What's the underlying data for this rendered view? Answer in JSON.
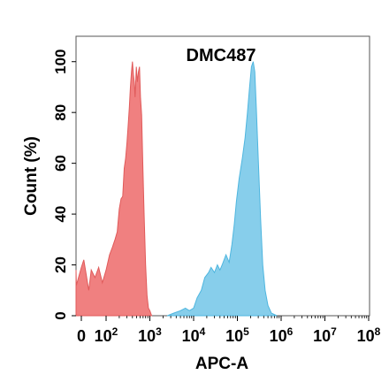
{
  "chart_data": {
    "type": "area",
    "title": "DMC487",
    "xlabel": "APC-A",
    "ylabel": "Count (%)",
    "xscale": "biexponential",
    "xlim": [
      -50,
      100000000
    ],
    "ylim": [
      0,
      110
    ],
    "x_ticks": [
      {
        "value": 0,
        "label": "0",
        "sup": ""
      },
      {
        "value": 100,
        "label": "10",
        "sup": "2"
      },
      {
        "value": 1000,
        "label": "10",
        "sup": "3"
      },
      {
        "value": 10000,
        "label": "10",
        "sup": "4"
      },
      {
        "value": 100000,
        "label": "10",
        "sup": "5"
      },
      {
        "value": 1000000,
        "label": "10",
        "sup": "6"
      },
      {
        "value": 10000000,
        "label": "10",
        "sup": "7"
      },
      {
        "value": 100000000,
        "label": "10",
        "sup": "8"
      }
    ],
    "y_ticks": [
      0,
      20,
      40,
      60,
      80,
      100
    ],
    "grid": false,
    "series": [
      {
        "color": "#f08080",
        "edge_color": "#e05a5a",
        "points": [
          [
            -50,
            18
          ],
          [
            -20,
            12
          ],
          [
            0,
            19
          ],
          [
            10,
            22
          ],
          [
            20,
            16
          ],
          [
            30,
            10
          ],
          [
            40,
            18
          ],
          [
            55,
            15
          ],
          [
            70,
            19
          ],
          [
            85,
            13
          ],
          [
            100,
            18
          ],
          [
            120,
            24
          ],
          [
            140,
            27
          ],
          [
            160,
            30
          ],
          [
            180,
            33
          ],
          [
            200,
            42
          ],
          [
            220,
            46
          ],
          [
            240,
            47
          ],
          [
            260,
            58
          ],
          [
            280,
            62
          ],
          [
            300,
            68
          ],
          [
            320,
            75
          ],
          [
            340,
            82
          ],
          [
            360,
            90
          ],
          [
            380,
            96
          ],
          [
            400,
            100
          ],
          [
            420,
            95
          ],
          [
            440,
            92
          ],
          [
            460,
            86
          ],
          [
            490,
            98
          ],
          [
            520,
            92
          ],
          [
            550,
            96
          ],
          [
            580,
            98
          ],
          [
            610,
            86
          ],
          [
            650,
            79
          ],
          [
            690,
            60
          ],
          [
            740,
            40
          ],
          [
            800,
            20
          ],
          [
            860,
            8
          ],
          [
            930,
            3
          ],
          [
            1000,
            2
          ],
          [
            1100,
            0
          ]
        ]
      },
      {
        "color": "#87ceeb",
        "edge_color": "#4fb6df",
        "points": [
          [
            2500,
            0
          ],
          [
            3500,
            1
          ],
          [
            5000,
            2
          ],
          [
            6500,
            3
          ],
          [
            8000,
            2
          ],
          [
            10000,
            3
          ],
          [
            12000,
            7
          ],
          [
            15000,
            10
          ],
          [
            18000,
            15
          ],
          [
            22000,
            17
          ],
          [
            25000,
            19
          ],
          [
            30000,
            17
          ],
          [
            35000,
            20
          ],
          [
            40000,
            18
          ],
          [
            45000,
            20
          ],
          [
            55000,
            24
          ],
          [
            65000,
            21
          ],
          [
            75000,
            28
          ],
          [
            85000,
            36
          ],
          [
            95000,
            45
          ],
          [
            110000,
            54
          ],
          [
            130000,
            62
          ],
          [
            150000,
            70
          ],
          [
            170000,
            80
          ],
          [
            190000,
            90
          ],
          [
            210000,
            98
          ],
          [
            230000,
            100
          ],
          [
            250000,
            96
          ],
          [
            270000,
            82
          ],
          [
            300000,
            62
          ],
          [
            340000,
            38
          ],
          [
            380000,
            20
          ],
          [
            430000,
            10
          ],
          [
            500000,
            4
          ],
          [
            600000,
            1
          ],
          [
            800000,
            0
          ]
        ]
      }
    ]
  }
}
